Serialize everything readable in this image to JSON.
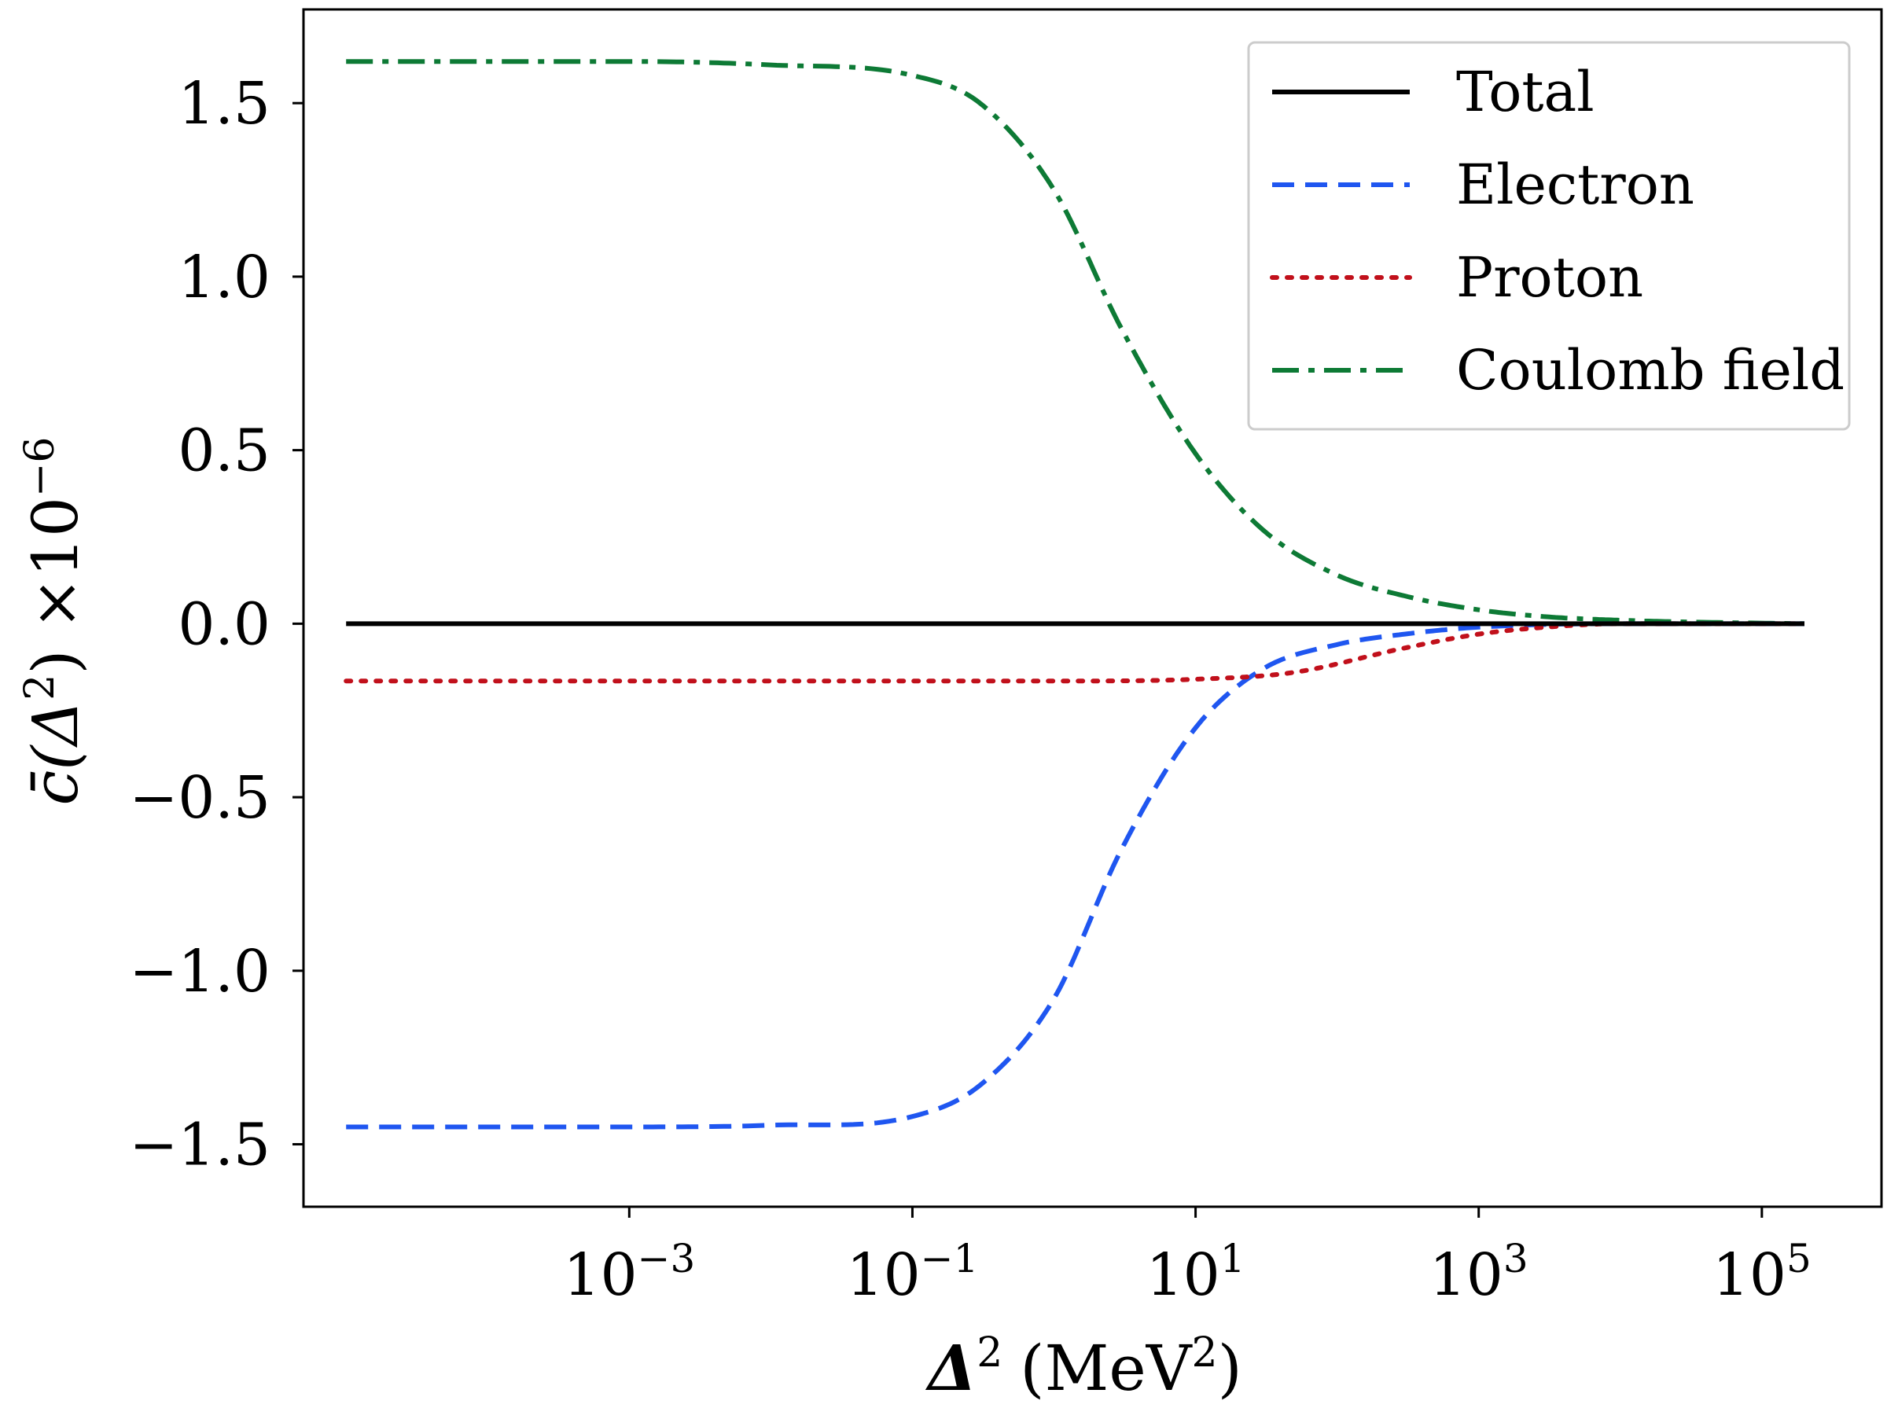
{
  "chart_data": {
    "type": "line",
    "xscale": "log",
    "xlabel_symbol": "Δ",
    "xlabel_sup": "2",
    "xlabel_unit": "(MeV",
    "xlabel_unit_sup": "2",
    "xlabel_unit_close": ")",
    "ylabel_main": "c̄(Δ",
    "ylabel_sup": "2",
    "ylabel_close": ") ×10",
    "ylabel_exp": "−6",
    "xlim": [
      5e-06,
      700000
    ],
    "ylim": [
      -1.68,
      1.77
    ],
    "x_ticks": [
      {
        "base": "10",
        "exp": "−3",
        "value": 0.001
      },
      {
        "base": "10",
        "exp": "−1",
        "value": 0.1
      },
      {
        "base": "10",
        "exp": "1",
        "value": 10
      },
      {
        "base": "10",
        "exp": "3",
        "value": 1000
      },
      {
        "base": "10",
        "exp": "5",
        "value": 100000
      }
    ],
    "y_ticks": [
      {
        "label": "1.5",
        "value": 1.5
      },
      {
        "label": "1.0",
        "value": 1.0
      },
      {
        "label": "0.5",
        "value": 0.5
      },
      {
        "label": "0.0",
        "value": 0.0
      },
      {
        "label": "−0.5",
        "value": -0.5
      },
      {
        "label": "−1.0",
        "value": -1.0
      },
      {
        "label": "−1.5",
        "value": -1.5
      }
    ],
    "grid": false,
    "legend_position": "top-right",
    "series": [
      {
        "name": "Total",
        "color": "#000000",
        "style": "solid",
        "x": [
          1e-05,
          200000
        ],
        "y": [
          0.0,
          0.0
        ]
      },
      {
        "name": "Electron",
        "color": "#1f56f0",
        "style": "dashed",
        "x": [
          1e-05,
          0.001,
          0.01,
          0.1,
          0.3,
          1,
          3,
          10,
          30,
          100,
          300,
          1000,
          10000,
          200000
        ],
        "y": [
          -1.45,
          -1.45,
          -1.445,
          -1.42,
          -1.33,
          -1.08,
          -0.65,
          -0.3,
          -0.13,
          -0.06,
          -0.03,
          -0.01,
          0.0,
          0.0
        ]
      },
      {
        "name": "Proton",
        "color": "#c1101b",
        "style": "dotted",
        "x": [
          1e-05,
          1,
          10,
          50,
          300,
          1000,
          3000,
          10000,
          200000
        ],
        "y": [
          -0.165,
          -0.165,
          -0.16,
          -0.14,
          -0.07,
          -0.03,
          -0.01,
          0.0,
          0.0
        ]
      },
      {
        "name": "Coulomb field",
        "color": "#0d7a35",
        "style": "dashdot",
        "x": [
          1e-05,
          0.001,
          0.01,
          0.1,
          0.3,
          1,
          3,
          10,
          30,
          100,
          300,
          1000,
          3000,
          10000,
          30000,
          200000
        ],
        "y": [
          1.62,
          1.62,
          1.61,
          1.58,
          1.5,
          1.25,
          0.85,
          0.49,
          0.27,
          0.14,
          0.08,
          0.04,
          0.02,
          0.01,
          0.005,
          0.0
        ]
      }
    ]
  }
}
